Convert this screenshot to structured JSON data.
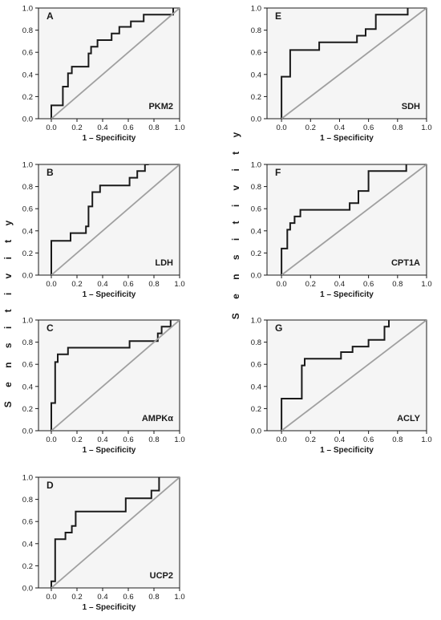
{
  "figure": {
    "ylabel_left": "S e n s i t i v i t y",
    "ylabel_right": "S e n s i t i v i t y",
    "colors": {
      "background": "#f5f5f5",
      "roc_line": "#1a1a1a",
      "reference_line": "#a0a0a0",
      "axis": "#1a1a1a"
    }
  },
  "chart_data": [
    {
      "type": "line",
      "letter": "A",
      "marker": "PKM2",
      "xlabel": "1 – Specificity",
      "ylabel": "",
      "xlim": [
        -0.1,
        1.0
      ],
      "ylim": [
        0.0,
        1.0
      ],
      "xticks": [
        "0.0",
        "0.2",
        "0.4",
        "0.6",
        "0.8",
        "1.0"
      ],
      "yticks": [
        "0.0",
        "0.2",
        "0.4",
        "0.6",
        "0.8",
        "1.0"
      ],
      "grid": false,
      "series": [
        {
          "role": "roc",
          "x": [
            0,
            0,
            0.09,
            0.09,
            0.13,
            0.13,
            0.16,
            0.16,
            0.29,
            0.29,
            0.31,
            0.31,
            0.36,
            0.36,
            0.47,
            0.47,
            0.53,
            0.53,
            0.62,
            0.62,
            0.72,
            0.72,
            0.95,
            0.95
          ],
          "y": [
            0,
            0.12,
            0.12,
            0.29,
            0.29,
            0.41,
            0.41,
            0.47,
            0.47,
            0.59,
            0.59,
            0.65,
            0.65,
            0.71,
            0.71,
            0.77,
            0.77,
            0.83,
            0.83,
            0.88,
            0.88,
            0.94,
            0.94,
            1.0
          ]
        },
        {
          "role": "reference",
          "x": [
            0,
            1
          ],
          "y": [
            0,
            1
          ]
        }
      ]
    },
    {
      "type": "line",
      "letter": "B",
      "marker": "LDH",
      "xlabel": "1 – Specificity",
      "ylabel": "",
      "xlim": [
        -0.1,
        1.0
      ],
      "ylim": [
        0.0,
        1.0
      ],
      "xticks": [
        "0.0",
        "0.2",
        "0.4",
        "0.6",
        "0.8",
        "1.0"
      ],
      "yticks": [
        "0.0",
        "0.2",
        "0.4",
        "0.6",
        "0.8",
        "1.0"
      ],
      "grid": false,
      "series": [
        {
          "role": "roc",
          "x": [
            0,
            0,
            0.15,
            0.15,
            0.27,
            0.27,
            0.29,
            0.29,
            0.32,
            0.32,
            0.38,
            0.38,
            0.61,
            0.61,
            0.67,
            0.67,
            0.73,
            0.73,
            0.76,
            0.76
          ],
          "y": [
            0,
            0.31,
            0.31,
            0.38,
            0.38,
            0.44,
            0.44,
            0.62,
            0.62,
            0.75,
            0.75,
            0.81,
            0.81,
            0.88,
            0.88,
            0.94,
            0.94,
            1.0,
            1.0,
            1.0
          ]
        },
        {
          "role": "reference",
          "x": [
            0,
            1
          ],
          "y": [
            0,
            1
          ]
        }
      ]
    },
    {
      "type": "line",
      "letter": "C",
      "marker": "AMPKα",
      "xlabel": "1 – Specificity",
      "ylabel": "",
      "xlim": [
        -0.1,
        1.0
      ],
      "ylim": [
        0.0,
        1.0
      ],
      "xticks": [
        "0.0",
        "0.2",
        "0.4",
        "0.6",
        "0.8",
        "1.0"
      ],
      "yticks": [
        "0.0",
        "0.2",
        "0.4",
        "0.6",
        "0.8",
        "1.0"
      ],
      "grid": false,
      "series": [
        {
          "role": "roc",
          "x": [
            0,
            0,
            0.03,
            0.03,
            0.05,
            0.05,
            0.09,
            0.09,
            0.13,
            0.13,
            0.61,
            0.61,
            0.83,
            0.83,
            0.86,
            0.86,
            0.93,
            0.93
          ],
          "y": [
            0,
            0.25,
            0.25,
            0.62,
            0.62,
            0.69,
            0.69,
            0.69,
            0.69,
            0.75,
            0.75,
            0.81,
            0.81,
            0.88,
            0.88,
            0.94,
            0.94,
            1.0
          ]
        },
        {
          "role": "reference",
          "x": [
            0,
            1
          ],
          "y": [
            0,
            1
          ]
        }
      ]
    },
    {
      "type": "line",
      "letter": "D",
      "marker": "UCP2",
      "xlabel": "1 – Specificity",
      "ylabel": "",
      "xlim": [
        -0.1,
        1.0
      ],
      "ylim": [
        0.0,
        1.0
      ],
      "xticks": [
        "0.0",
        "0.2",
        "0.4",
        "0.6",
        "0.8",
        "1.0"
      ],
      "yticks": [
        "0.0",
        "0.2",
        "0.4",
        "0.6",
        "0.8",
        "1.0"
      ],
      "grid": false,
      "series": [
        {
          "role": "roc",
          "x": [
            0,
            0,
            0.03,
            0.03,
            0.11,
            0.11,
            0.16,
            0.16,
            0.19,
            0.19,
            0.22,
            0.22,
            0.58,
            0.58,
            0.78,
            0.78,
            0.84,
            0.84
          ],
          "y": [
            0,
            0.06,
            0.06,
            0.44,
            0.44,
            0.5,
            0.5,
            0.56,
            0.56,
            0.69,
            0.69,
            0.69,
            0.69,
            0.81,
            0.81,
            0.88,
            0.88,
            1.0
          ]
        },
        {
          "role": "reference",
          "x": [
            0,
            1
          ],
          "y": [
            0,
            1
          ]
        }
      ]
    },
    {
      "type": "line",
      "letter": "E",
      "marker": "SDH",
      "xlabel": "1 – Specificity",
      "ylabel": "",
      "xlim": [
        -0.1,
        1.0
      ],
      "ylim": [
        0.0,
        1.0
      ],
      "xticks": [
        "0.0",
        "0.2",
        "0.4",
        "0.6",
        "0.8",
        "1.0"
      ],
      "yticks": [
        "0.0",
        "0.2",
        "0.4",
        "0.6",
        "0.8",
        "1.0"
      ],
      "grid": false,
      "series": [
        {
          "role": "roc",
          "x": [
            0,
            0,
            0.06,
            0.06,
            0.26,
            0.26,
            0.52,
            0.52,
            0.58,
            0.58,
            0.65,
            0.65,
            0.69,
            0.69,
            0.87,
            0.87
          ],
          "y": [
            0,
            0.38,
            0.38,
            0.62,
            0.62,
            0.69,
            0.69,
            0.75,
            0.75,
            0.81,
            0.81,
            0.94,
            0.94,
            0.94,
            0.94,
            1.0
          ]
        },
        {
          "role": "reference",
          "x": [
            0,
            1
          ],
          "y": [
            0,
            1
          ]
        }
      ]
    },
    {
      "type": "line",
      "letter": "F",
      "marker": "CPT1A",
      "xlabel": "1 – Specificity",
      "ylabel": "",
      "xlim": [
        -0.1,
        1.0
      ],
      "ylim": [
        0.0,
        1.0
      ],
      "xticks": [
        "0.0",
        "0.2",
        "0.4",
        "0.6",
        "0.8",
        "1.0"
      ],
      "yticks": [
        "0.0",
        "0.2",
        "0.4",
        "0.6",
        "0.8",
        "1.0"
      ],
      "grid": false,
      "series": [
        {
          "role": "roc",
          "x": [
            0,
            0,
            0.04,
            0.04,
            0.06,
            0.06,
            0.09,
            0.09,
            0.13,
            0.13,
            0.22,
            0.22,
            0.47,
            0.47,
            0.53,
            0.53,
            0.6,
            0.6,
            0.86,
            0.86
          ],
          "y": [
            0,
            0.24,
            0.24,
            0.41,
            0.41,
            0.47,
            0.47,
            0.53,
            0.53,
            0.59,
            0.59,
            0.59,
            0.59,
            0.65,
            0.65,
            0.76,
            0.76,
            0.94,
            0.94,
            1.0
          ]
        },
        {
          "role": "reference",
          "x": [
            0,
            1
          ],
          "y": [
            0,
            1
          ]
        }
      ]
    },
    {
      "type": "line",
      "letter": "G",
      "marker": "ACLY",
      "xlabel": "1 – Specificity",
      "ylabel": "",
      "xlim": [
        -0.1,
        1.0
      ],
      "ylim": [
        0.0,
        1.0
      ],
      "xticks": [
        "0.0",
        "0.2",
        "0.4",
        "0.6",
        "0.8",
        "1.0"
      ],
      "yticks": [
        "0.0",
        "0.2",
        "0.4",
        "0.6",
        "0.8",
        "1.0"
      ],
      "grid": false,
      "series": [
        {
          "role": "roc",
          "x": [
            0,
            0,
            0.14,
            0.14,
            0.16,
            0.16,
            0.41,
            0.41,
            0.49,
            0.49,
            0.6,
            0.6,
            0.71,
            0.71,
            0.74,
            0.74
          ],
          "y": [
            0,
            0.29,
            0.29,
            0.59,
            0.59,
            0.65,
            0.65,
            0.71,
            0.71,
            0.76,
            0.76,
            0.82,
            0.82,
            0.94,
            0.94,
            1.0
          ]
        },
        {
          "role": "reference",
          "x": [
            0,
            1
          ],
          "y": [
            0,
            1
          ]
        }
      ]
    }
  ]
}
